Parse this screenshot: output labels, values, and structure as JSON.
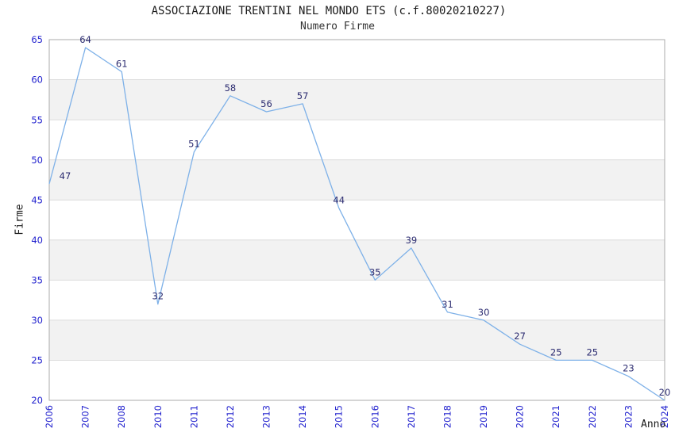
{
  "chart_data": {
    "type": "line",
    "title": "ASSOCIAZIONE TRENTINI NEL MONDO ETS (c.f.80020210227)",
    "subtitle": "Numero Firme",
    "xlabel": "Anno",
    "ylabel": "Firme",
    "categories": [
      "2006",
      "2007",
      "2008",
      "2010",
      "2011",
      "2012",
      "2013",
      "2014",
      "2015",
      "2016",
      "2017",
      "2018",
      "2019",
      "2020",
      "2021",
      "2022",
      "2023",
      "2024"
    ],
    "series": [
      {
        "name": "Numero Firme",
        "values": [
          47,
          64,
          61,
          32,
          51,
          58,
          56,
          57,
          44,
          35,
          39,
          31,
          30,
          27,
          25,
          25,
          23,
          20
        ]
      }
    ],
    "ylim": [
      20,
      65
    ],
    "yticks": [
      20,
      25,
      30,
      35,
      40,
      45,
      50,
      55,
      60,
      65
    ],
    "grid": "horizontal gridlines with alternating gray bands",
    "legend_position": "none",
    "point_labels_visible": true,
    "colors": {
      "line": "#7EB1E8",
      "tick_label": "#2121CE",
      "point_label": "#2B2B70",
      "band_fill": "#F2F2F2",
      "gridline": "#DCDCDC",
      "plot_border": "#ABABAB",
      "title_text": "#1A1A1A",
      "subtitle_text": "#333333",
      "axis_title_text": "#1A1A1A",
      "background": "#FFFFFF"
    }
  }
}
